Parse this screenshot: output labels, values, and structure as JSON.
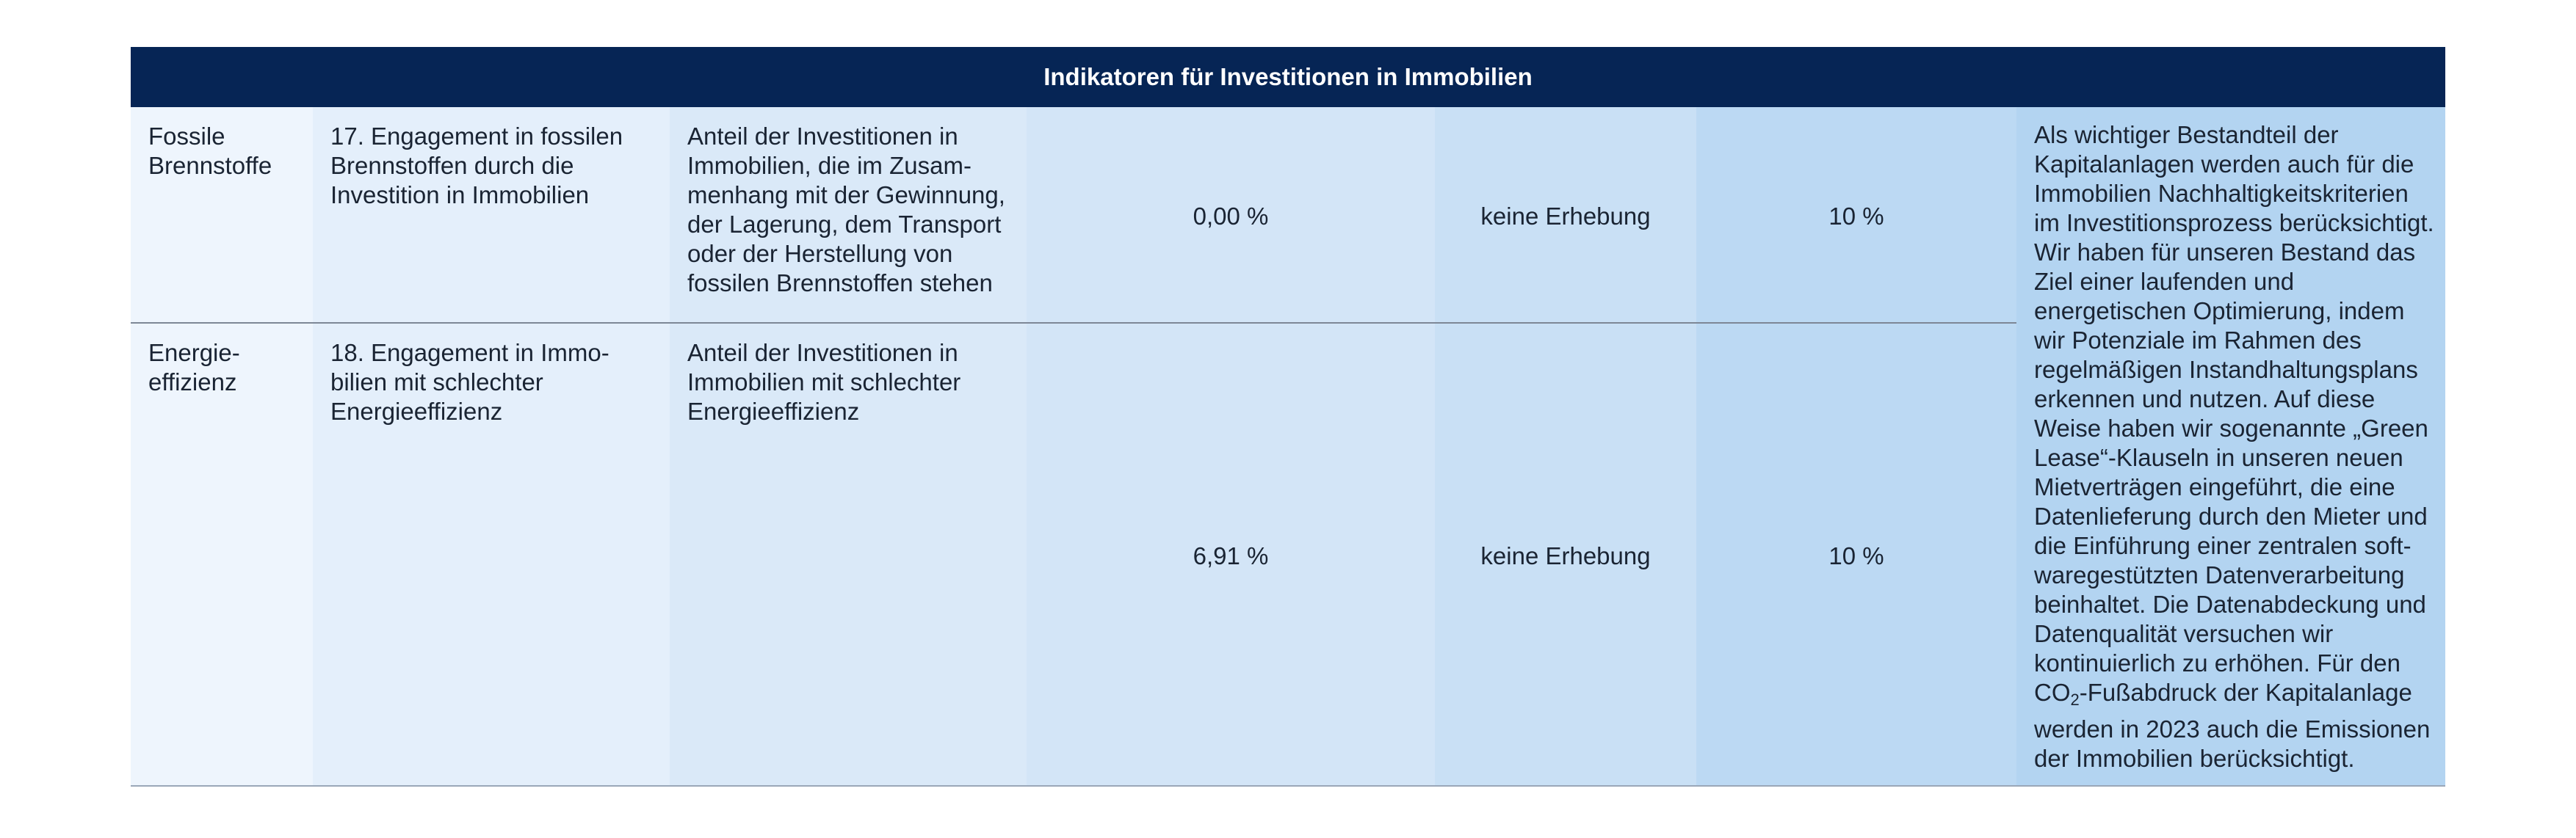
{
  "table": {
    "title": "Indikatoren für Investitionen in Immobilien",
    "rows": [
      {
        "category": "Fossile Brennstoffe",
        "indicator": "17. Engagement in fossilen Brennstoffen durch die Investition in Immobilien",
        "metric": "Anteil der Investitionen in Immobilien, die im Zusam­menhang mit der Gewinnung, der Lagerung, dem Transport oder der Herstellung von fossilen Brennstoffen stehen",
        "value": "0,00 %",
        "previous": "keine Erhebung",
        "coverage": "10 %"
      },
      {
        "category": "Energie­effizienz",
        "indicator": "18. Engagement in Immo­bilien mit schlechter Energieeffizienz",
        "metric": "Anteil der Investitionen in Immobilien mit schlechter Energieeffizienz",
        "value": "6,91 %",
        "previous": "keine Erhebung",
        "coverage": "10 %"
      }
    ],
    "explanation_part1": "Als wichtiger Bestandteil der Kapitalanlagen werden auch für die Immobilien Nachhaltigkeitskriterien im Investitionsprozess berück­sichtigt. Wir haben für unseren Bestand das Ziel einer laufenden und energetischen Optimierung, in­dem wir Potenziale im Rahmen des regelmäßigen Instandhaltungsplans erkennen und nutzen. Auf diese Weise haben wir sogenannte „Green Lease“-Klauseln in unseren neuen Mietverträgen eingeführt, die eine Datenlieferung durch den Mieter und die Einführung einer zentralen soft­waregestützten Datenverarbeitung beinhaltet. Die Datenabdeckung und Datenqualität versuchen wir kontinuierlich zu erhöhen. Für den CO",
    "explanation_sub": "2",
    "explanation_part2": "-Fußabdruck der Kapitalanlage werden in 2023 auch die Emissionen der Immobilien berücksichtigt."
  }
}
